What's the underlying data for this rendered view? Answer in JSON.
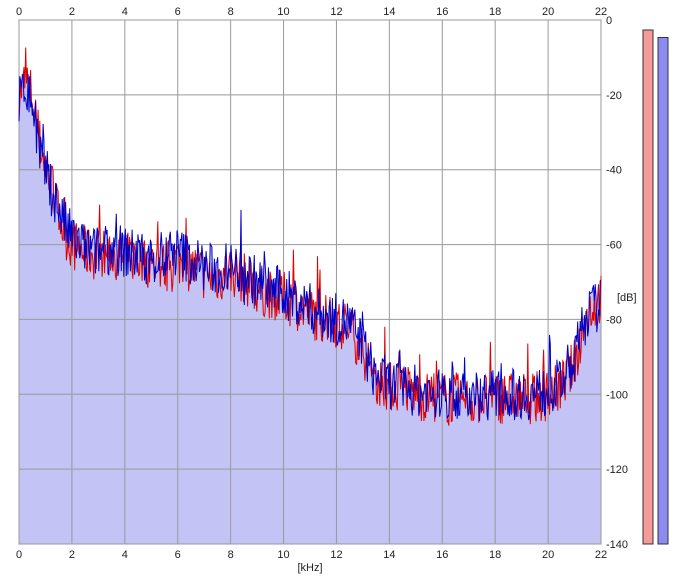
{
  "chart_data": {
    "type": "line",
    "title": "",
    "xlabel": "[kHz]",
    "ylabel": "[dB]",
    "xlim": [
      0,
      22
    ],
    "ylim": [
      -140,
      0
    ],
    "x_ticks": [
      "0",
      "2",
      "4",
      "6",
      "8",
      "10",
      "12",
      "14",
      "16",
      "18",
      "20",
      "22"
    ],
    "y_ticks": [
      "0",
      "-20",
      "-40",
      "-60",
      "-80",
      "-100",
      "-120",
      "-140"
    ],
    "grid": true,
    "legend": "none",
    "colors": {
      "background": "#ffffff",
      "grid": "#9a9a9a",
      "fill": "#c3c3f5",
      "series_a": "#e00000",
      "series_b": "#0000c8",
      "meter_a": "#f79a9a",
      "meter_b": "#8c8cf0"
    },
    "series": [
      {
        "color_key": "series_a",
        "x": [
          0,
          0.25,
          0.5,
          0.75,
          1,
          1.25,
          1.5,
          1.75,
          2,
          2.5,
          3,
          3.5,
          4,
          4.5,
          5,
          5.5,
          6,
          6.5,
          7,
          7.5,
          8,
          8.5,
          9,
          9.5,
          10,
          10.5,
          11,
          11.5,
          12,
          12.5,
          13,
          13.25,
          13.5,
          14,
          14.5,
          15,
          15.5,
          16,
          16.5,
          17,
          17.5,
          18,
          18.5,
          19,
          19.5,
          20,
          20.5,
          21,
          21.5,
          22
        ],
        "values": [
          -20,
          -16,
          -20,
          -32,
          -38,
          -45,
          -52,
          -57,
          -60,
          -62,
          -63,
          -62,
          -63,
          -64,
          -65,
          -66,
          -64,
          -66,
          -68,
          -69,
          -67,
          -69,
          -72,
          -73,
          -74,
          -76,
          -78,
          -80,
          -81,
          -82,
          -88,
          -94,
          -96,
          -98,
          -98,
          -100,
          -101,
          -101,
          -101,
          -102,
          -101,
          -101,
          -101,
          -101,
          -101,
          -100,
          -98,
          -92,
          -78,
          -74
        ]
      },
      {
        "color_key": "series_b",
        "x": [
          0,
          0.25,
          0.5,
          0.75,
          1,
          1.25,
          1.5,
          1.75,
          2,
          2.5,
          3,
          3.5,
          4,
          4.5,
          5,
          5.5,
          6,
          6.5,
          7,
          7.5,
          8,
          8.5,
          9,
          9.5,
          10,
          10.5,
          11,
          11.5,
          12,
          12.5,
          13,
          13.25,
          13.5,
          14,
          14.5,
          15,
          15.5,
          16,
          16.5,
          17,
          17.5,
          18,
          18.5,
          19,
          19.5,
          20,
          20.5,
          21,
          21.5,
          22
        ],
        "values": [
          -22,
          -18,
          -22,
          -34,
          -40,
          -46,
          -50,
          -55,
          -58,
          -61,
          -62,
          -61,
          -62,
          -63,
          -64,
          -64,
          -62,
          -64,
          -66,
          -67,
          -66,
          -67,
          -70,
          -72,
          -73,
          -75,
          -77,
          -79,
          -80,
          -81,
          -87,
          -92,
          -95,
          -97,
          -98,
          -99,
          -100,
          -100,
          -100,
          -101,
          -100,
          -100,
          -100,
          -100,
          -100,
          -99,
          -97,
          -90,
          -78,
          -76
        ]
      }
    ],
    "meters": [
      {
        "color_key": "meter_a",
        "level_db": 0
      },
      {
        "color_key": "meter_b",
        "level_db": -2
      }
    ]
  }
}
